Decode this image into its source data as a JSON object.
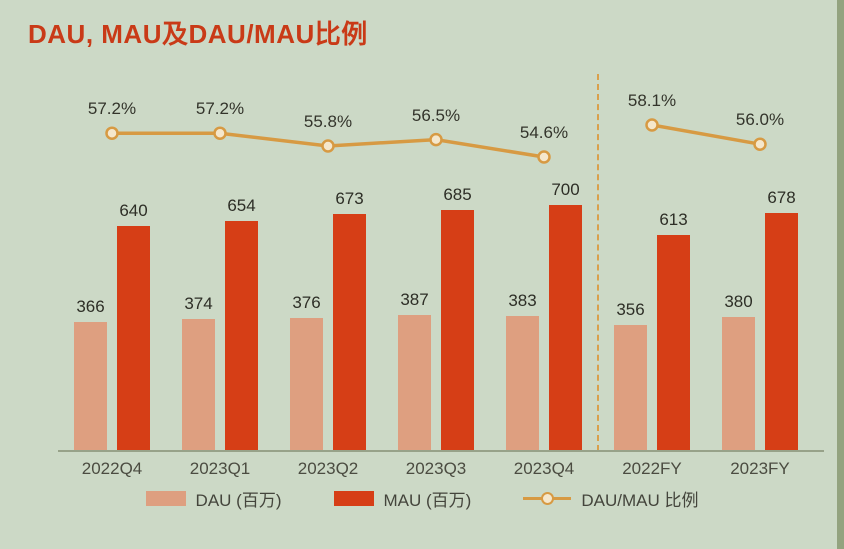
{
  "page": {
    "background": "#ccd9c6",
    "edge_strip_color": "#93a37f",
    "title_color": "#c93a17"
  },
  "title": "DAU, MAU及DAU/MAU比例",
  "chart_data": {
    "type": "bar",
    "title": "DAU, MAU及DAU/MAU比例",
    "categories": [
      "2022Q4",
      "2023Q1",
      "2023Q2",
      "2023Q3",
      "2023Q4",
      "2022FY",
      "2023FY"
    ],
    "series": [
      {
        "name": "DAU (百万)",
        "type": "bar",
        "color": "#de9f80",
        "values": [
          366,
          374,
          376,
          387,
          383,
          356,
          380
        ]
      },
      {
        "name": "MAU (百万)",
        "type": "bar",
        "color": "#d63e16",
        "values": [
          640,
          654,
          673,
          685,
          700,
          613,
          678
        ]
      },
      {
        "name": "DAU/MAU 比例",
        "type": "line",
        "color": "#d79a43",
        "marker_fill": "#f5e7cc",
        "values": [
          57.2,
          57.2,
          55.8,
          56.5,
          54.6,
          58.1,
          56.0
        ],
        "labels": [
          "57.2%",
          "57.2%",
          "55.8%",
          "56.5%",
          "54.6%",
          "58.1%",
          "56.0%"
        ]
      }
    ],
    "divider_after_index": 4,
    "legend_position": "bottom",
    "grid": false,
    "ylim_bars": [
      0,
      760
    ],
    "ylim_line_percent": [
      54,
      59
    ]
  }
}
